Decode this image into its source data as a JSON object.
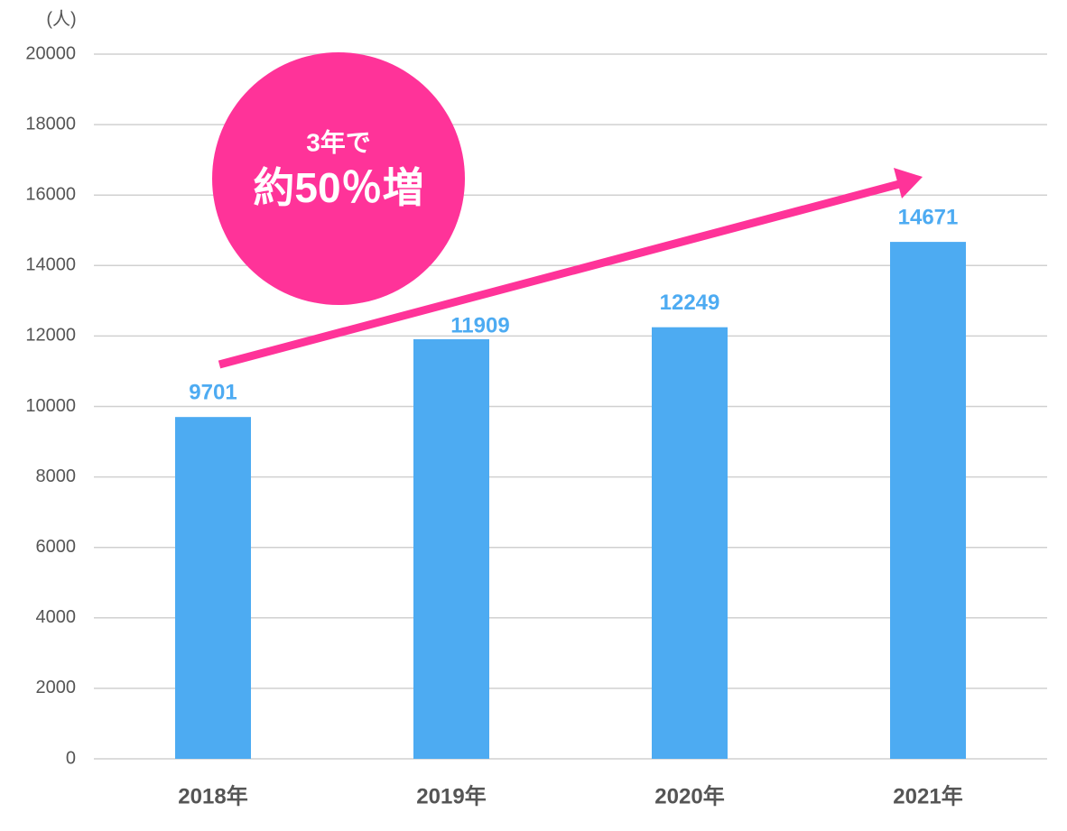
{
  "chart_data": {
    "type": "bar",
    "y_unit": "(人)",
    "categories": [
      "2018年",
      "2019年",
      "2020年",
      "2021年"
    ],
    "values": [
      9701,
      11909,
      12249,
      14671
    ],
    "color": "#4dabf2",
    "ylim": [
      0,
      20000
    ],
    "yticks": [
      0,
      2000,
      4000,
      6000,
      8000,
      10000,
      12000,
      14000,
      16000,
      18000,
      20000
    ],
    "grid": true,
    "annotation": {
      "line1": "3年で",
      "line2": "約50％増",
      "color": "#ff3399"
    }
  }
}
